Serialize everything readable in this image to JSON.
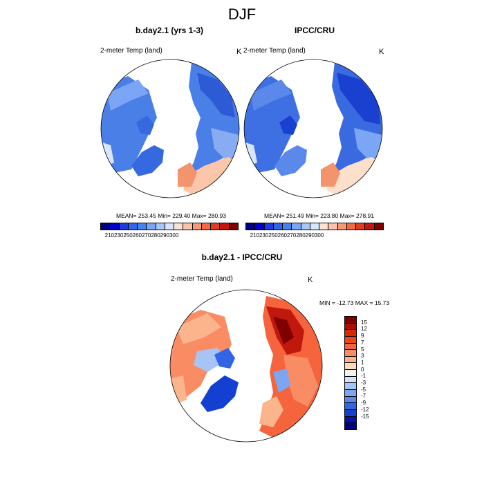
{
  "page": {
    "title": "DJF"
  },
  "panels": {
    "left": {
      "title": "b.day2.1 (yrs 1-3)",
      "variable": "2-meter Temp (land)",
      "units": "K",
      "stats": "MEAN= 253.45  Min= 229.40  Max= 280.93"
    },
    "right": {
      "title": "IPCC/CRU",
      "variable": "2-meter Temp (land)",
      "units": "K",
      "stats": "MEAN= 251.49  Min= 223.80  Max= 278.91"
    },
    "diff": {
      "title": "b.day2.1 - IPCC/CRU",
      "variable": "2-meter Temp (land)",
      "units": "K",
      "stats": "MIN = -12.73 MAX =  15.73"
    }
  },
  "colorbar_main": {
    "colors": [
      "#00007f",
      "#0000c8",
      "#1e3cdc",
      "#3264eb",
      "#4682f0",
      "#7aa6f5",
      "#a8c6fa",
      "#d7e6fc",
      "#fde2d2",
      "#fcc3a8",
      "#f79a74",
      "#f06a44",
      "#e03c1e",
      "#c0180c",
      "#800000"
    ],
    "ticks": [
      "210",
      "230",
      "250",
      "260",
      "270",
      "280",
      "290",
      "300"
    ]
  },
  "colorbar_diff": {
    "colors": [
      "#800000",
      "#b40a00",
      "#dc2800",
      "#f04614",
      "#f5643c",
      "#fa8c64",
      "#fcb48c",
      "#fdd8c0",
      "#f4f2f0",
      "#d2e0fa",
      "#a8c4f5",
      "#7ea6f0",
      "#5a88eb",
      "#3264e6",
      "#1440d2",
      "#0014b4",
      "#00007f"
    ],
    "ticks": [
      "15",
      "12",
      "9",
      "7",
      "5",
      "3",
      "1",
      "0",
      "-1",
      "-3",
      "-5",
      "-7",
      "-9",
      "-12",
      "-15"
    ]
  }
}
